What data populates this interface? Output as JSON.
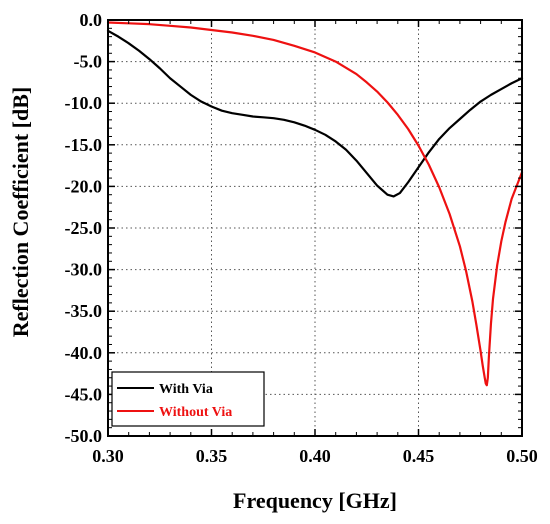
{
  "chart_data": {
    "type": "line",
    "title": "",
    "xlabel": "Frequency [GHz]",
    "ylabel": "Reflection Coefficient [dB]",
    "xlim": [
      0.3,
      0.5
    ],
    "ylim": [
      -50.0,
      0.0
    ],
    "x_ticks": [
      0.3,
      0.35,
      0.4,
      0.45,
      0.5
    ],
    "x_tick_labels": [
      "0.30",
      "0.35",
      "0.40",
      "0.45",
      "0.50"
    ],
    "y_ticks": [
      0.0,
      -5.0,
      -10.0,
      -15.0,
      -20.0,
      -25.0,
      -30.0,
      -35.0,
      -40.0,
      -45.0,
      -50.0
    ],
    "y_tick_labels": [
      "0.0",
      "-5.0",
      "-10.0",
      "-15.0",
      "-20.0",
      "-25.0",
      "-30.0",
      "-35.0",
      "-40.0",
      "-45.0",
      "-50.0"
    ],
    "grid": true,
    "legend_position": "bottom-left",
    "series": [
      {
        "name": "With Via",
        "color": "#000000",
        "x": [
          0.3,
          0.305,
          0.31,
          0.315,
          0.32,
          0.325,
          0.33,
          0.335,
          0.34,
          0.345,
          0.35,
          0.355,
          0.36,
          0.365,
          0.37,
          0.375,
          0.38,
          0.385,
          0.39,
          0.395,
          0.4,
          0.405,
          0.41,
          0.415,
          0.42,
          0.425,
          0.43,
          0.435,
          0.438,
          0.441,
          0.445,
          0.45,
          0.455,
          0.46,
          0.465,
          0.47,
          0.475,
          0.48,
          0.485,
          0.49,
          0.495,
          0.5
        ],
        "values": [
          -1.3,
          -2.0,
          -2.8,
          -3.7,
          -4.7,
          -5.8,
          -7.0,
          -8.0,
          -9.0,
          -9.8,
          -10.4,
          -10.9,
          -11.2,
          -11.4,
          -11.6,
          -11.7,
          -11.8,
          -12.0,
          -12.3,
          -12.7,
          -13.2,
          -13.8,
          -14.6,
          -15.6,
          -16.9,
          -18.4,
          -19.9,
          -21.0,
          -21.2,
          -20.8,
          -19.5,
          -17.7,
          -15.9,
          -14.3,
          -13.0,
          -11.9,
          -10.8,
          -9.8,
          -9.0,
          -8.3,
          -7.6,
          -7.0
        ]
      },
      {
        "name": "Without Via",
        "color": "#ee1111",
        "x": [
          0.3,
          0.31,
          0.32,
          0.33,
          0.34,
          0.35,
          0.36,
          0.37,
          0.38,
          0.39,
          0.4,
          0.41,
          0.42,
          0.425,
          0.43,
          0.435,
          0.44,
          0.445,
          0.45,
          0.455,
          0.46,
          0.465,
          0.47,
          0.473,
          0.476,
          0.478,
          0.48,
          0.481,
          0.482,
          0.4825,
          0.483,
          0.4835,
          0.484,
          0.485,
          0.486,
          0.488,
          0.49,
          0.492,
          0.495,
          0.5
        ],
        "values": [
          -0.3,
          -0.4,
          -0.5,
          -0.7,
          -0.9,
          -1.2,
          -1.5,
          -1.9,
          -2.4,
          -3.1,
          -3.9,
          -5.0,
          -6.5,
          -7.5,
          -8.6,
          -9.9,
          -11.4,
          -13.1,
          -15.1,
          -17.4,
          -20.1,
          -23.3,
          -27.2,
          -30.2,
          -33.8,
          -36.7,
          -39.8,
          -41.5,
          -43.0,
          -43.7,
          -43.9,
          -43.0,
          -40.5,
          -36.5,
          -33.5,
          -29.5,
          -26.6,
          -24.3,
          -21.5,
          -18.3
        ]
      }
    ]
  }
}
